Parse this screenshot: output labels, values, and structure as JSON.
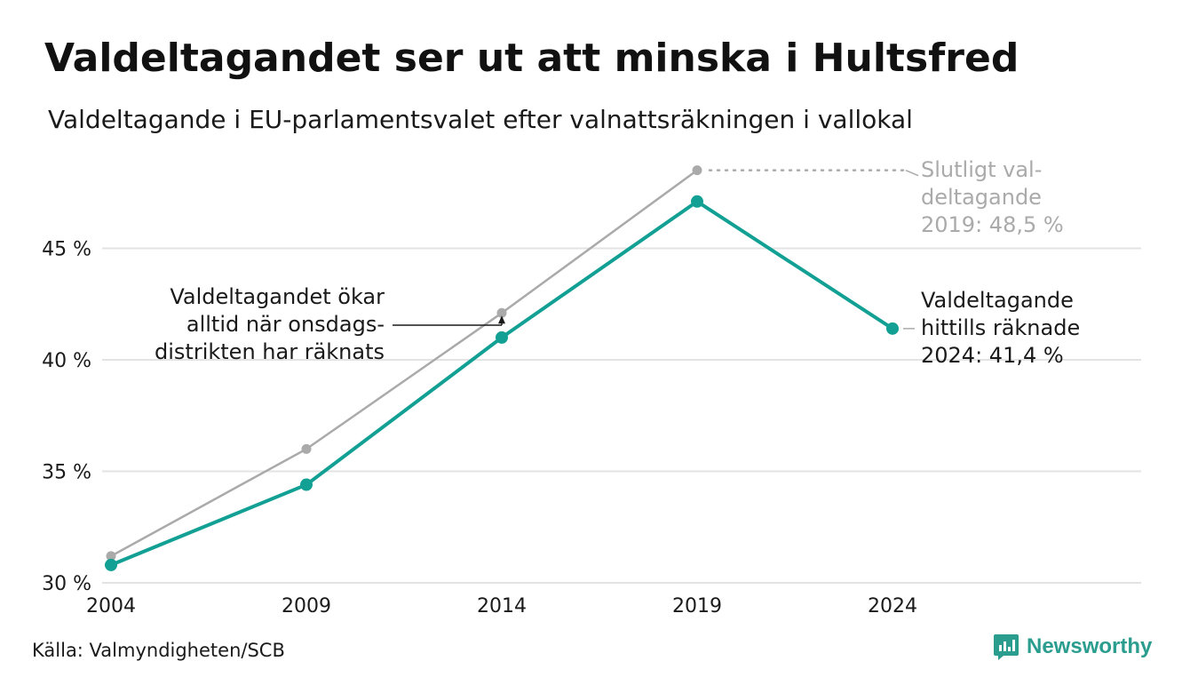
{
  "title": "Valdeltagandet ser ut att minska i Hultsfred",
  "subtitle": "Valdeltagande i EU-parlamentsvalet efter valnattsräkningen i vallokal",
  "source": "Källa: Valmyndigheten/SCB",
  "brand": "Newsworthy",
  "colors": {
    "counted": "#12a094",
    "final": "#aaaaaa",
    "grid": "#e3e3e3"
  },
  "chart_data": {
    "type": "line",
    "x": [
      2004,
      2009,
      2014,
      2019,
      2024
    ],
    "ylim": [
      30,
      49
    ],
    "yticks": [
      {
        "value": 30,
        "label": "30 %"
      },
      {
        "value": 35,
        "label": "35 %"
      },
      {
        "value": 40,
        "label": "40 %"
      },
      {
        "value": 45,
        "label": "45 %"
      }
    ],
    "xticks": [
      "2004",
      "2009",
      "2014",
      "2019",
      "2024"
    ],
    "grid": true,
    "series": [
      {
        "key": "final",
        "values": [
          31.2,
          36.0,
          42.1,
          48.5,
          null
        ]
      },
      {
        "key": "counted",
        "values": [
          30.8,
          34.4,
          41.0,
          47.1,
          41.4
        ]
      }
    ],
    "annotations": {
      "onsdags": [
        "Valdeltagandet ökar",
        "alltid när onsdags-",
        "distrikten har räknats"
      ],
      "final_label": [
        "Slutligt val-",
        "deltagande",
        "2019: 48,5 %"
      ],
      "counted_label": [
        "Valdeltagande",
        "hittills räknade",
        "2024: 41,4 %"
      ]
    }
  }
}
